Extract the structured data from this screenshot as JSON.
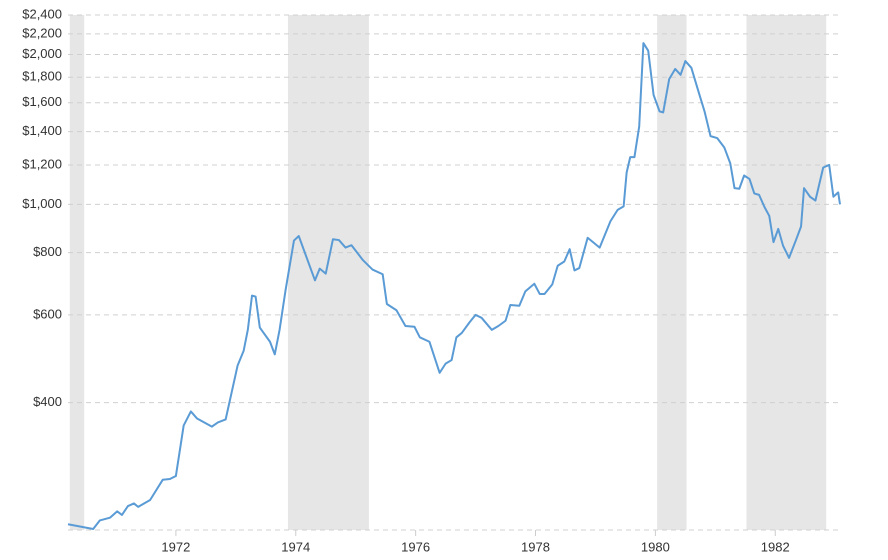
{
  "chart_data": {
    "type": "line",
    "log_y": true,
    "grid": true,
    "color": "#5a9bd5",
    "shade_color": "#e6e6e6",
    "xlim": [
      1970.2,
      1983.08
    ],
    "xticks": [
      1972,
      1974,
      1976,
      1978,
      1980,
      1982
    ],
    "ylim": [
      222,
      2400
    ],
    "yticks": [
      {
        "value": 400,
        "label": "$400"
      },
      {
        "value": 600,
        "label": "$600"
      },
      {
        "value": 800,
        "label": "$800"
      },
      {
        "value": 1000,
        "label": "$1,000"
      },
      {
        "value": 1200,
        "label": "$1,200"
      },
      {
        "value": 1400,
        "label": "$1,400"
      },
      {
        "value": 1600,
        "label": "$1,600"
      },
      {
        "value": 1800,
        "label": "$1,800"
      },
      {
        "value": 2000,
        "label": "$2,000"
      },
      {
        "value": 2200,
        "label": "$2,200"
      },
      {
        "value": 2400,
        "label": "$2,400"
      }
    ],
    "shaded_ranges": [
      [
        1970.23,
        1970.47
      ],
      [
        1973.87,
        1975.22
      ],
      [
        1980.03,
        1980.52
      ],
      [
        1981.52,
        1982.85
      ]
    ],
    "x": [
      1970.2,
      1970.62,
      1970.73,
      1970.9,
      1971.02,
      1971.1,
      1971.2,
      1971.3,
      1971.37,
      1971.57,
      1971.78,
      1971.9,
      1972.0,
      1972.13,
      1972.25,
      1972.35,
      1972.6,
      1972.7,
      1972.83,
      1973.03,
      1973.13,
      1973.2,
      1973.27,
      1973.33,
      1973.4,
      1973.57,
      1973.65,
      1973.73,
      1973.83,
      1973.97,
      1974.05,
      1974.32,
      1974.4,
      1974.5,
      1974.62,
      1974.72,
      1974.83,
      1974.93,
      1975.12,
      1975.28,
      1975.45,
      1975.52,
      1975.68,
      1975.83,
      1975.98,
      1976.07,
      1976.23,
      1976.4,
      1976.5,
      1976.6,
      1976.68,
      1976.77,
      1976.9,
      1977.0,
      1977.1,
      1977.27,
      1977.38,
      1977.5,
      1977.58,
      1977.73,
      1977.83,
      1977.98,
      1978.07,
      1978.15,
      1978.28,
      1978.37,
      1978.48,
      1978.57,
      1978.65,
      1978.73,
      1978.87,
      1979.07,
      1979.25,
      1979.37,
      1979.47,
      1979.52,
      1979.58,
      1979.65,
      1979.73,
      1979.8,
      1979.88,
      1979.97,
      1980.07,
      1980.13,
      1980.23,
      1980.33,
      1980.42,
      1980.5,
      1980.6,
      1980.7,
      1980.82,
      1980.92,
      1981.03,
      1981.15,
      1981.25,
      1981.32,
      1981.4,
      1981.48,
      1981.57,
      1981.65,
      1981.73,
      1981.82,
      1981.9,
      1981.97,
      1982.05,
      1982.13,
      1982.23,
      1982.35,
      1982.43,
      1982.48,
      1982.58,
      1982.67,
      1982.8,
      1982.9,
      1982.97,
      1983.05,
      1983.08
    ],
    "values": [
      228,
      223,
      232,
      235,
      242,
      238,
      248,
      251,
      247,
      255,
      280,
      281,
      285,
      360,
      384,
      372,
      358,
      365,
      370,
      475,
      508,
      560,
      656,
      653,
      566,
      530,
      500,
      560,
      673,
      846,
      864,
      704,
      743,
      726,
      851,
      848,
      819,
      828,
      773,
      740,
      724,
      631,
      613,
      570,
      568,
      541,
      530,
      459,
      479,
      487,
      541,
      552,
      580,
      600,
      592,
      560,
      570,
      584,
      628,
      626,
      669,
      693,
      661,
      661,
      691,
      753,
      768,
      813,
      737,
      745,
      857,
      819,
      925,
      975,
      991,
      1158,
      1244,
      1244,
      1434,
      2108,
      2035,
      1658,
      1537,
      1530,
      1784,
      1870,
      1820,
      1940,
      1880,
      1714,
      1537,
      1371,
      1359,
      1301,
      1208,
      1078,
      1075,
      1143,
      1125,
      1052,
      1045,
      988,
      948,
      840,
      893,
      826,
      781,
      851,
      903,
      1078,
      1036,
      1018,
      1186,
      1200,
      1036,
      1057,
      1000
    ]
  }
}
